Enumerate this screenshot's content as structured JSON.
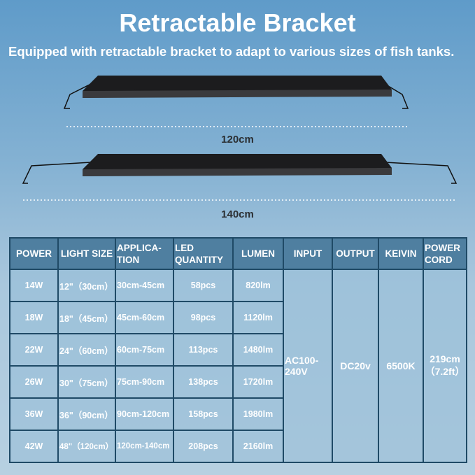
{
  "title": "Retractable Bracket",
  "subtitle": "Equipped with retractable bracket to adapt to various sizes of fish tanks.",
  "dimensions": [
    "120cm",
    "140cm"
  ],
  "colors": {
    "header": "#4f7fa0",
    "border": "#1f4a66",
    "fixture": "#1c1c1e"
  },
  "table": {
    "headers": [
      "POWER",
      "LIGHT SIZE",
      "APPLICA- TION",
      "LED QUANTITY",
      "LUMEN",
      "INPUT",
      "OUTPUT",
      "KEIVIN",
      "POWER CORD"
    ],
    "rows": [
      [
        "14W",
        "12\"（30cm）",
        "30cm-45cm",
        "58pcs",
        "820lm"
      ],
      [
        "18W",
        "18\"（45cm）",
        "45cm-60cm",
        "98pcs",
        "1120lm"
      ],
      [
        "22W",
        "24\"（60cm）",
        "60cm-75cm",
        "113pcs",
        "1480lm"
      ],
      [
        "26W",
        "30\"（75cm）",
        "75cm-90cm",
        "138pcs",
        "1720lm"
      ],
      [
        "36W",
        "36\"（90cm）",
        "90cm-120cm",
        "158pcs",
        "1980lm"
      ],
      [
        "42W",
        "48\"（120cm）",
        "120cm-140cm",
        "208pcs",
        "2160lm"
      ]
    ],
    "input": "AC100-240V",
    "output": "DC20v",
    "kelvin": "6500K",
    "power_cord": "219cm（7.2ft）"
  }
}
